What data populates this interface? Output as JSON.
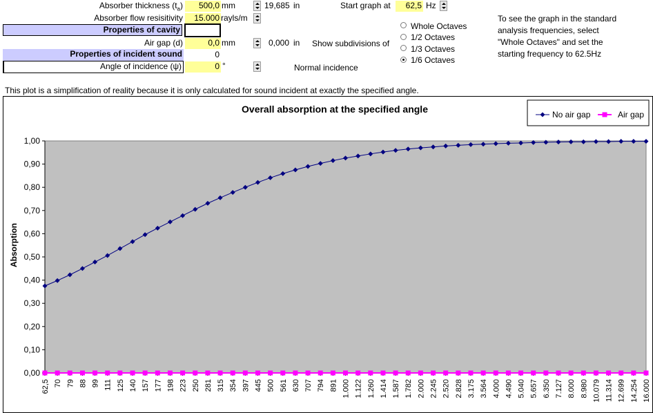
{
  "params": {
    "thickness_label": "Absorber thickness (t",
    "thickness_sub": "a",
    "thickness_label_end": ")",
    "thickness_value": "500,0",
    "thickness_unit": "mm",
    "thickness_in": "19,685",
    "thickness_in_unit": "in",
    "flow_label": "Absorber flow resisitivity",
    "flow_value": "15.000",
    "flow_unit": "rayls/m",
    "cavity_header": "Properties of cavity",
    "airgap_label": "Air gap (d)",
    "airgap_value": "0,0",
    "airgap_unit": "mm",
    "airgap_in": "0,000",
    "airgap_in_unit": "in",
    "incident_header": "Properties of incident sound",
    "incident_value": "0",
    "angle_label": "Angle of incidence (ψ)",
    "angle_value": "0",
    "angle_unit": "°",
    "normal_incidence": "Normal incidence"
  },
  "graph_controls": {
    "start_label": "Start graph at",
    "start_value": "62,5",
    "start_unit": "Hz",
    "subdivisions_label": "Show subdivisions of",
    "options": [
      "Whole Octaves",
      "1/2 Octaves",
      "1/3 Octaves",
      "1/6 Octaves"
    ],
    "selected": "1/6 Octaves"
  },
  "hint": {
    "lines": [
      "To see the graph in the standard",
      "analysis frequencies, select",
      "\"Whole Octaves\" and set the",
      "starting frequency to 62.5Hz"
    ]
  },
  "note": "This plot is a simplification of reality because it is only calculated for sound incident at exactly the specified angle.",
  "chart_data": {
    "type": "line",
    "title": "Overall absorption at the specified angle",
    "ylabel": "Absorption",
    "xlabel": "",
    "ylim": [
      0,
      1
    ],
    "ytick_labels": [
      "0,00",
      "0,10",
      "0,20",
      "0,30",
      "0,40",
      "0,50",
      "0,60",
      "0,70",
      "0,80",
      "0,90",
      "1,00"
    ],
    "plot_background": "#c0c0c0",
    "grid": false,
    "legend_position": "top-right",
    "categories": [
      "62,5",
      "70",
      "79",
      "88",
      "99",
      "111",
      "125",
      "140",
      "157",
      "177",
      "198",
      "223",
      "250",
      "281",
      "315",
      "354",
      "397",
      "445",
      "500",
      "561",
      "630",
      "707",
      "794",
      "891",
      "1.000",
      "1.122",
      "1.260",
      "1.414",
      "1.587",
      "1.782",
      "2.000",
      "2.245",
      "2.520",
      "2.828",
      "3.175",
      "3.564",
      "4.000",
      "4.490",
      "5.040",
      "5.657",
      "6.350",
      "7.127",
      "8.000",
      "8.980",
      "10.079",
      "11.314",
      "12.699",
      "14.254",
      "16.000"
    ],
    "series": [
      {
        "name": "No air gap",
        "color": "#000080",
        "marker": "diamond",
        "values": [
          0.375,
          0.398,
          0.423,
          0.45,
          0.478,
          0.506,
          0.536,
          0.566,
          0.596,
          0.624,
          0.651,
          0.678,
          0.705,
          0.731,
          0.755,
          0.778,
          0.8,
          0.821,
          0.841,
          0.859,
          0.875,
          0.89,
          0.903,
          0.915,
          0.926,
          0.935,
          0.944,
          0.952,
          0.959,
          0.965,
          0.97,
          0.974,
          0.978,
          0.981,
          0.984,
          0.986,
          0.988,
          0.99,
          0.991,
          0.993,
          0.994,
          0.995,
          0.996,
          0.996,
          0.997,
          0.997,
          0.998,
          0.998,
          0.998
        ]
      },
      {
        "name": "Air gap",
        "color": "#ff00ff",
        "marker": "square",
        "values": [
          0,
          0,
          0,
          0,
          0,
          0,
          0,
          0,
          0,
          0,
          0,
          0,
          0,
          0,
          0,
          0,
          0,
          0,
          0,
          0,
          0,
          0,
          0,
          0,
          0,
          0,
          0,
          0,
          0,
          0,
          0,
          0,
          0,
          0,
          0,
          0,
          0,
          0,
          0,
          0,
          0,
          0,
          0,
          0,
          0,
          0,
          0,
          0,
          0
        ]
      }
    ]
  }
}
